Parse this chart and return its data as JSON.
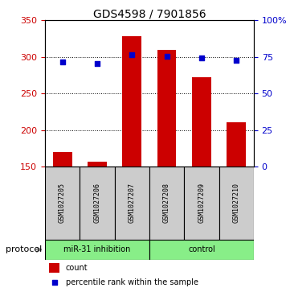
{
  "title": "GDS4598 / 7901856",
  "samples": [
    "GSM1027205",
    "GSM1027206",
    "GSM1027207",
    "GSM1027208",
    "GSM1027209",
    "GSM1027210"
  ],
  "bar_values": [
    170,
    157,
    328,
    310,
    272,
    210
  ],
  "bar_baseline": 150,
  "percentile_values": [
    71.5,
    70.5,
    76.5,
    75.5,
    74.5,
    72.5
  ],
  "bar_color": "#cc0000",
  "dot_color": "#0000cc",
  "left_ylim": [
    150,
    350
  ],
  "left_yticks": [
    150,
    200,
    250,
    300,
    350
  ],
  "right_ylim": [
    0,
    100
  ],
  "right_yticks": [
    0,
    25,
    50,
    75,
    100
  ],
  "right_yticklabels": [
    "0",
    "25",
    "50",
    "75",
    "100%"
  ],
  "groups": [
    {
      "label": "miR-31 inhibition",
      "start": 0,
      "end": 3,
      "color": "#88ee88"
    },
    {
      "label": "control",
      "start": 3,
      "end": 6,
      "color": "#88ee88"
    }
  ],
  "protocol_label": "protocol",
  "legend_count_label": "count",
  "legend_percentile_label": "percentile rank within the sample",
  "cell_bg_color": "#cccccc",
  "left_tick_color": "#cc0000",
  "right_tick_color": "#0000cc",
  "title_fontsize": 10,
  "tick_labelsize": 8,
  "sample_fontsize": 6,
  "group_fontsize": 7,
  "legend_fontsize": 7,
  "protocol_fontsize": 8
}
